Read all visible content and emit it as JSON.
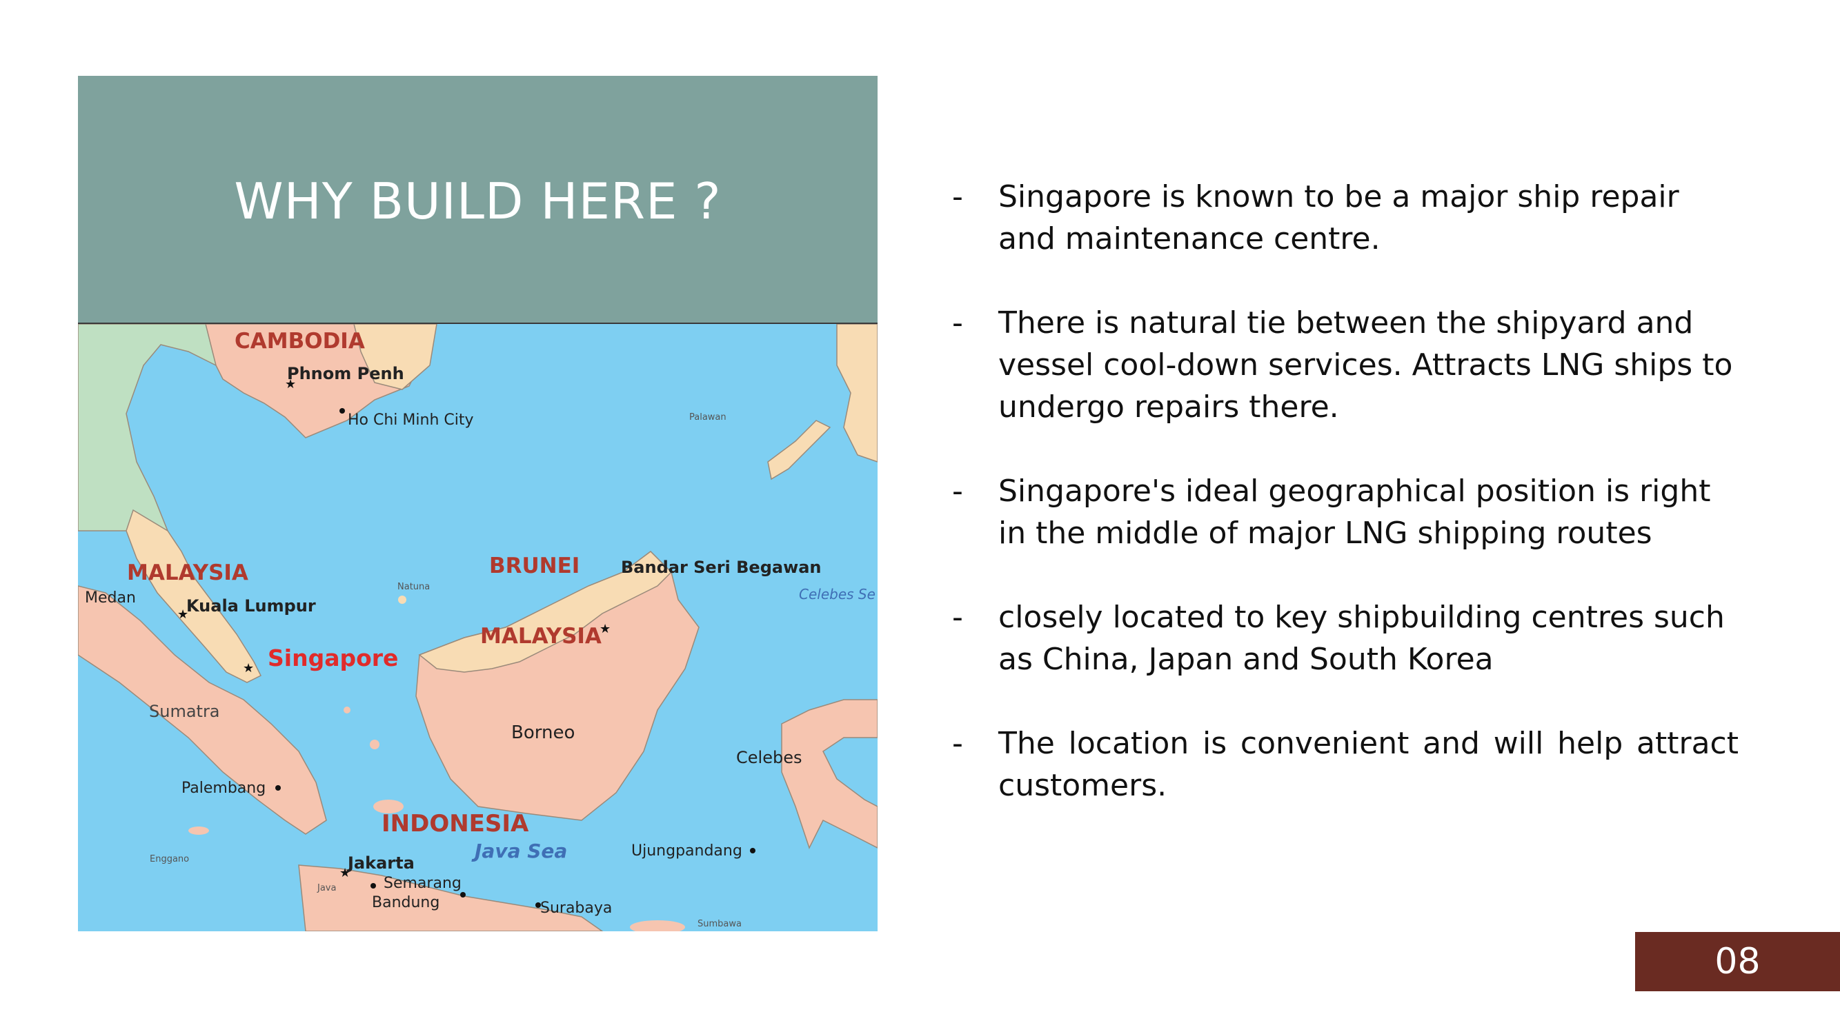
{
  "slide": {
    "title": "WHY BUILD HERE ?",
    "page_number": "08"
  },
  "bullets": [
    {
      "dash": "-",
      "text": "Singapore is known to be a major ship repair and maintenance centre."
    },
    {
      "dash": "-",
      "text": "There is  natural tie between the shipyard and vessel cool-down services. Attracts LNG ships to undergo repairs there."
    },
    {
      "dash": "-",
      "text": "Singapore's ideal geographical position is right in the middle of major LNG shipping routes"
    },
    {
      "dash": "-",
      "text": "closely located to key shipbuilding centres  such as China, Japan and South Korea"
    },
    {
      "dash": "-",
      "text": "The location is convenient and will help attract customers."
    }
  ],
  "map": {
    "colors": {
      "sea": "#7ecff2",
      "land_pink": "#f6c5b0",
      "land_tan": "#f8dcb4",
      "land_green": "#bfe0c2",
      "country_label": "#b03a2e",
      "city_label": "#222222",
      "highlight": "#e02b2b",
      "sea_label": "#3f6fb5"
    },
    "labels": {
      "cambodia": "CAMBODIA",
      "phnom_penh": "Phnom Penh",
      "ho_chi_minh": "Ho Chi Minh City",
      "palawan": "Palawan",
      "malaysia_west": "MALAYSIA",
      "medan": "Medan",
      "kuala_lumpur": "Kuala Lumpur",
      "natuna": "Natuna",
      "brunei": "BRUNEI",
      "bandar": "Bandar Seri Begawan",
      "celebes_sea": "Celebes Se",
      "malaysia_east": "MALAYSIA",
      "singapore": "Singapore",
      "sumatra": "Sumatra",
      "borneo": "Borneo",
      "celebes": "Celebes",
      "palembang": "Palembang",
      "indonesia": "INDONESIA",
      "java_sea": "Java Sea",
      "ujungpandang": "Ujungpandang",
      "enggano": "Enggano",
      "jakarta": "Jakarta",
      "java": "Java",
      "semarang": "Semarang",
      "bandung": "Bandung",
      "surabaya": "Surabaya",
      "sumbawa": "Sumbawa"
    }
  }
}
